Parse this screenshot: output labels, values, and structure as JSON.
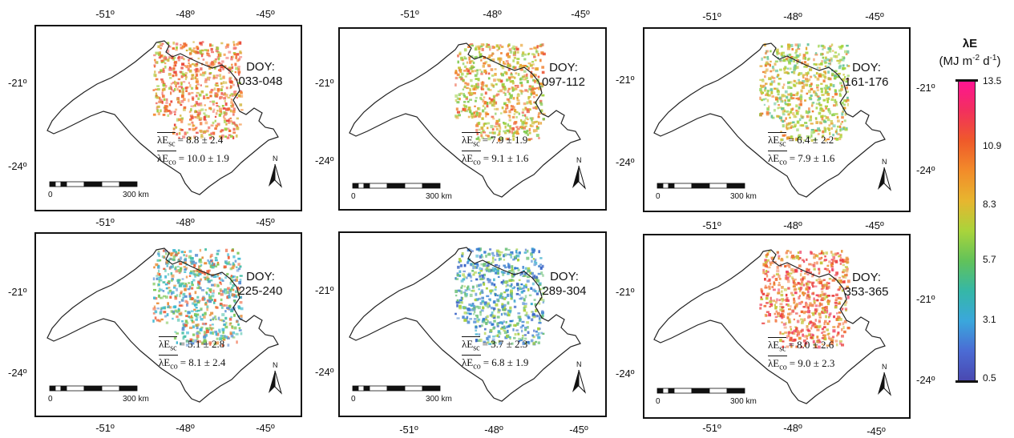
{
  "panels": [
    {
      "doy_label": "DOY:",
      "doy_range": "033-048",
      "sc_value": "= 8.8 ± 2.4",
      "co_value": "= 10.0 ± 1.9",
      "palette": [
        "#e9483b",
        "#f06a2e",
        "#f58c36",
        "#d2b43a",
        "#9ccd3a",
        "#f27a73"
      ]
    },
    {
      "doy_label": "DOY:",
      "doy_range": "097-112",
      "sc_value": "= 7.9 ± 1.9",
      "co_value": "= 9.1 ± 1.6",
      "palette": [
        "#f07e2c",
        "#e8a332",
        "#c8c33a",
        "#9fd040",
        "#ec5b3c",
        "#7fc84d"
      ]
    },
    {
      "doy_label": "DOY:",
      "doy_range": "161-176",
      "sc_value": "= 6.4 ± 2.2",
      "co_value": "= 7.9 ± 1.6",
      "palette": [
        "#a6d43b",
        "#c9c53a",
        "#8ccf4a",
        "#e2a632",
        "#64c39a",
        "#f07a30"
      ]
    },
    {
      "doy_label": "DOY:",
      "doy_range": "225-240",
      "sc_value": "= 5.1 ± 2.8",
      "co_value": "= 8.1 ± 2.4",
      "palette": [
        "#3fb8d2",
        "#5a8fd1",
        "#7cc756",
        "#e88b34",
        "#47c0a8",
        "#ef5f37"
      ]
    },
    {
      "doy_label": "DOY:",
      "doy_range": "289-304",
      "sc_value": "= 3.7 ± 2.3",
      "co_value": "= 6.8 ± 1.9",
      "palette": [
        "#3d66c7",
        "#4f8bd2",
        "#3fb0cf",
        "#6fc27b",
        "#2f78d0",
        "#a8cf3e"
      ]
    },
    {
      "doy_label": "DOY:",
      "doy_range": "353-365",
      "sc_value": "= 8.0 ± 2.6",
      "co_value": "= 9.0 ± 2.3",
      "palette": [
        "#ea3f3e",
        "#f06a30",
        "#e99234",
        "#ee3f5f",
        "#c6c43b",
        "#f58a5c"
      ]
    }
  ],
  "stat_sc": {
    "symbol": "λE",
    "sub": "sc"
  },
  "stat_co": {
    "symbol": "λE",
    "sub": "co"
  },
  "lon_ticks": [
    "-51º",
    "-48º",
    "-45º"
  ],
  "lat_ticks": [
    "-21º",
    "-24º"
  ],
  "scalebar": {
    "start": "0",
    "end": "300 km"
  },
  "north": "N",
  "colorbar": {
    "title_line1": "λE",
    "title_line2_a": "(MJ m",
    "title_line2_sup1": "-2",
    "title_line2_b": " d",
    "title_line2_sup2": "-1",
    "title_line2_c": ")",
    "ticks": [
      "13.5",
      "10.9",
      "8.3",
      "5.7",
      "3.1",
      "0.5"
    ],
    "colors": [
      "#ff1493",
      "#f2305d",
      "#ef5a2a",
      "#f28c2a",
      "#e7b62f",
      "#a9d43b",
      "#61c25a",
      "#35b7a7",
      "#3aa7dc",
      "#4b6bd4",
      "#4a48b0"
    ]
  }
}
